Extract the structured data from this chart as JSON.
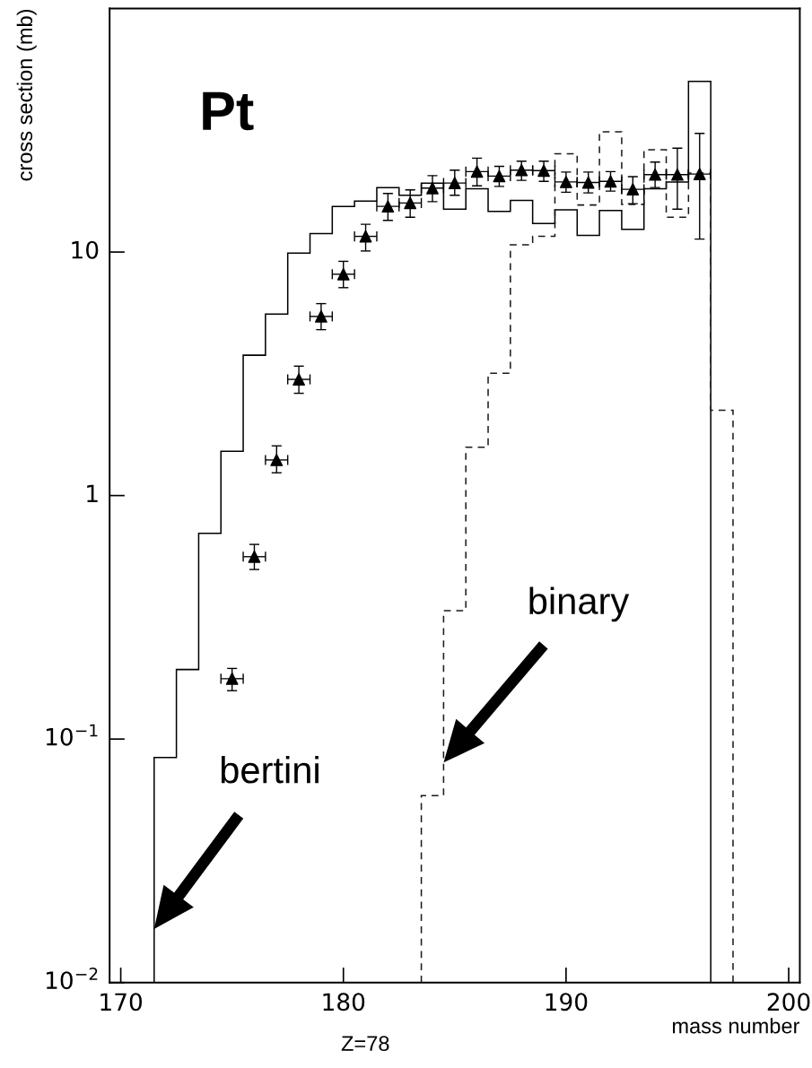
{
  "chart_data": {
    "type": "histogram",
    "xlabel": "mass number",
    "ylabel": "cross section (mb)",
    "annotations": [
      "Pt",
      "Z=78",
      "bertini",
      "binary"
    ],
    "log": "y",
    "xlim": [
      169.5,
      200.5
    ],
    "ylim": [
      0.01,
      100
    ],
    "xticks": [
      170,
      180,
      190,
      200
    ],
    "yticks": [
      {
        "value": 0.01,
        "label": "10$^{−2}$"
      },
      {
        "value": 0.1,
        "label": "10$^{−1}$"
      },
      1,
      10
    ],
    "grid": false,
    "legend": false,
    "series": [
      {
        "color": "#000000",
        "line_style": "solid",
        "bins": [
          171.5,
          172.5,
          173.5,
          174.5,
          175.5,
          176.5,
          177.5,
          178.5,
          179.5,
          180.5,
          181.5,
          182.5,
          183.5,
          184.5,
          185.5,
          186.5,
          187.5,
          188.5,
          189.5,
          190.5,
          191.5,
          192.5,
          193.5,
          194.5,
          195.5,
          196.5
        ],
        "values": [
          0.084,
          0.193,
          0.7,
          1.52,
          3.77,
          5.56,
          9.9,
          11.9,
          15.4,
          16.2,
          18.4,
          17.1,
          19.2,
          15.0,
          18.2,
          14.7,
          16.3,
          13.1,
          14.9,
          11.7,
          14.8,
          12.4,
          18.2,
          19.4,
          50.2
        ]
      },
      {
        "color": "#1a1a1a",
        "line_style": "dashed",
        "bins": [
          183.5,
          184.5,
          185.5,
          186.5,
          187.5,
          188.5,
          189.5,
          190.5,
          191.5,
          192.5,
          193.5,
          194.5,
          195.5,
          196.5,
          197.5
        ],
        "values": [
          0.0586,
          0.337,
          1.58,
          3.18,
          10.7,
          11.6,
          25.3,
          15.6,
          31.2,
          15.7,
          26.3,
          13.9,
          21.1,
          2.24
        ]
      },
      {
        "type": "scatter",
        "color": "#000000",
        "marker": "triangle",
        "x": [
          175,
          176,
          177,
          178,
          179,
          180,
          181,
          182,
          183,
          184,
          185,
          186,
          187,
          188,
          189,
          190,
          191,
          192,
          193,
          194,
          195,
          196
        ],
        "values": [
          0.177,
          0.561,
          1.4,
          3.0,
          5.44,
          8.11,
          11.6,
          15.4,
          15.9,
          18.3,
          19.2,
          21.4,
          20.5,
          21.7,
          21.6,
          19.4,
          19.3,
          19.5,
          18.1,
          20.8,
          20.8,
          20.9
        ],
        "errors": [
          [
            0.158,
            0.195
          ],
          [
            0.497,
            0.63
          ],
          [
            1.24,
            1.6
          ],
          [
            2.63,
            3.4
          ],
          [
            4.8,
            6.14
          ],
          [
            7.14,
            9.16
          ],
          [
            10.1,
            13.0
          ],
          [
            13.5,
            17.4
          ],
          [
            13.9,
            18.0
          ],
          [
            16.1,
            20.6
          ],
          [
            17.1,
            21.7
          ],
          [
            18.7,
            24.3
          ],
          [
            18.6,
            22.5
          ],
          [
            19.7,
            23.6
          ],
          [
            19.5,
            23.6
          ],
          [
            17.6,
            21.3
          ],
          [
            17.5,
            21.3
          ],
          [
            17.8,
            21.4
          ],
          [
            15.8,
            20.4
          ],
          [
            18.4,
            23.4
          ],
          [
            15.0,
            26.7
          ],
          [
            11.3,
            30.7
          ]
        ],
        "xerrors": [
          0.5,
          0.5,
          0.5,
          0.5,
          0.5,
          0.5,
          0.5,
          0.5,
          0.5,
          0.5,
          0.5,
          0.5,
          0.5,
          0.5,
          0.5,
          0.5,
          0.5,
          0.5,
          0.5,
          0.5,
          0.5,
          0.5
        ]
      }
    ]
  }
}
